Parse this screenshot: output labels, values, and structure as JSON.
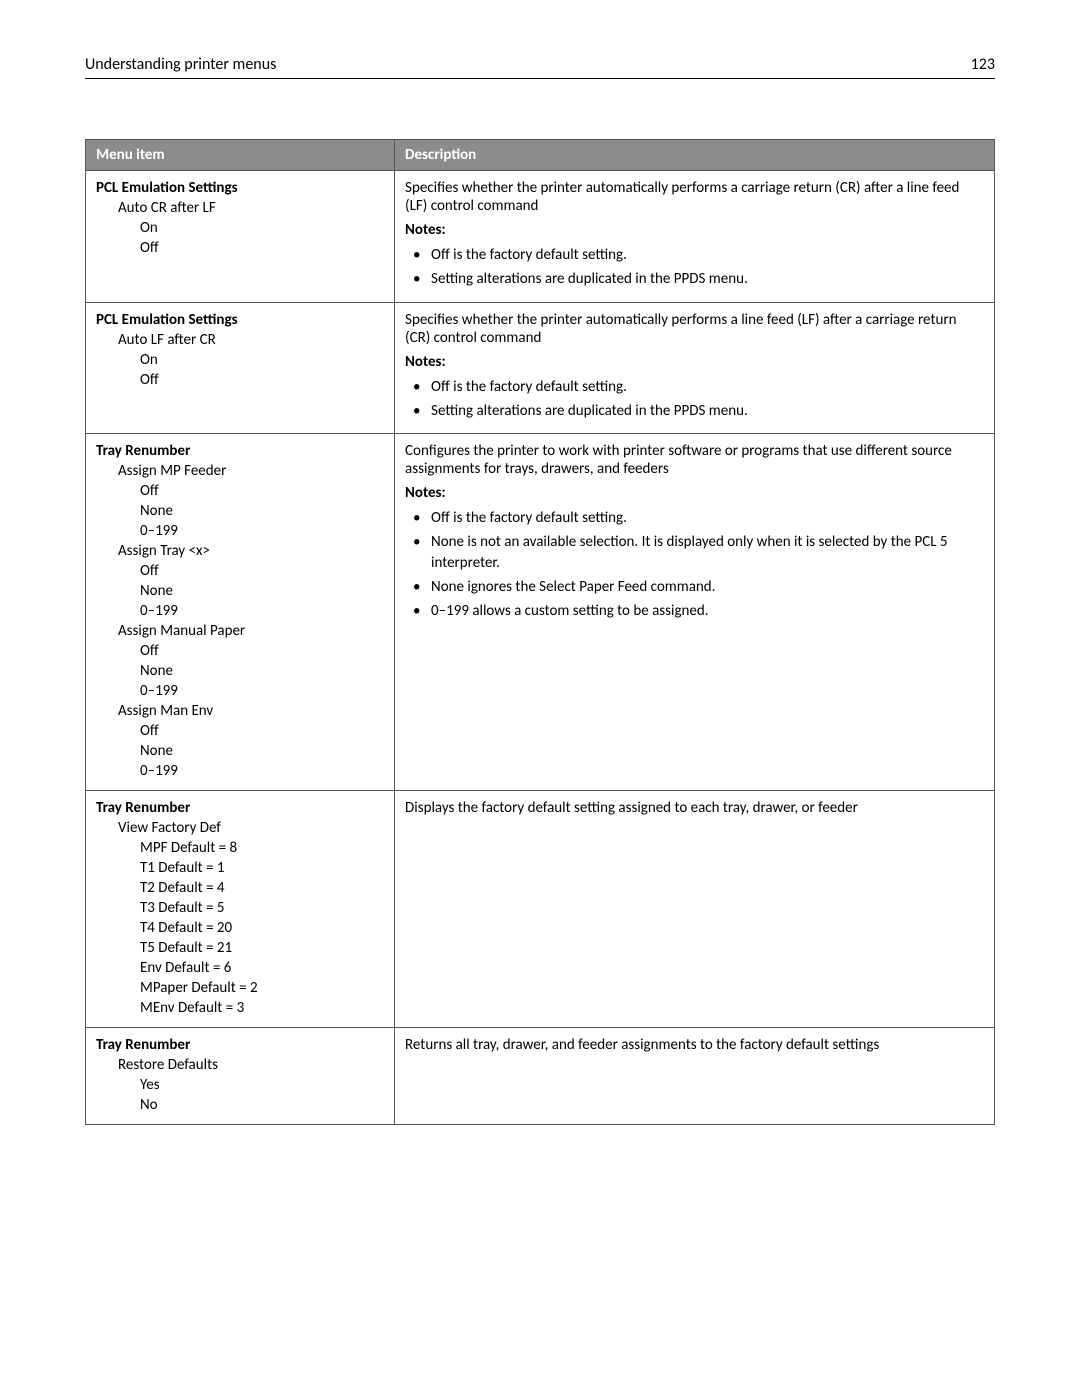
{
  "header": {
    "title": "Understanding printer menus",
    "page_number": "123"
  },
  "table": {
    "columns": [
      "Menu item",
      "Description"
    ],
    "rows": [
      {
        "menu": [
          {
            "indent": 0,
            "text": "PCL Emulation Settings"
          },
          {
            "indent": 1,
            "text": "Auto CR after LF"
          },
          {
            "indent": 2,
            "text": "On"
          },
          {
            "indent": 2,
            "text": "Off"
          }
        ],
        "description": "Specifies whether the printer automatically performs a carriage return (CR) after a line feed (LF) control command",
        "notes_label": "Notes:",
        "notes": [
          "Off is the factory default setting.",
          "Setting alterations are duplicated in the PPDS menu."
        ]
      },
      {
        "menu": [
          {
            "indent": 0,
            "text": "PCL Emulation Settings"
          },
          {
            "indent": 1,
            "text": "Auto LF after CR"
          },
          {
            "indent": 2,
            "text": "On"
          },
          {
            "indent": 2,
            "text": "Off"
          }
        ],
        "description": "Specifies whether the printer automatically performs a line feed (LF) after a carriage return (CR) control command",
        "notes_label": "Notes:",
        "notes": [
          "Off is the factory default setting.",
          "Setting alterations are duplicated in the PPDS menu."
        ]
      },
      {
        "menu": [
          {
            "indent": 0,
            "text": "Tray Renumber"
          },
          {
            "indent": 1,
            "text": "Assign MP Feeder"
          },
          {
            "indent": 2,
            "text": "Off"
          },
          {
            "indent": 2,
            "text": "None"
          },
          {
            "indent": 2,
            "text": "0–199"
          },
          {
            "indent": 1,
            "text": "Assign Tray <x>"
          },
          {
            "indent": 2,
            "text": "Off"
          },
          {
            "indent": 2,
            "text": "None"
          },
          {
            "indent": 2,
            "text": "0–199"
          },
          {
            "indent": 1,
            "text": "Assign Manual Paper"
          },
          {
            "indent": 2,
            "text": "Off"
          },
          {
            "indent": 2,
            "text": "None"
          },
          {
            "indent": 2,
            "text": "0–199"
          },
          {
            "indent": 1,
            "text": "Assign Man Env"
          },
          {
            "indent": 2,
            "text": "Off"
          },
          {
            "indent": 2,
            "text": "None"
          },
          {
            "indent": 2,
            "text": "0–199"
          }
        ],
        "description": "Configures the printer to work with printer software or programs that use different source assignments for trays, drawers, and feeders",
        "notes_label": "Notes:",
        "notes": [
          "Off is the factory default setting.",
          "None is not an available selection. It is displayed only when it is selected by the PCL 5 interpreter.",
          "None ignores the Select Paper Feed command.",
          "0–199 allows a custom setting to be assigned."
        ]
      },
      {
        "menu": [
          {
            "indent": 0,
            "text": "Tray Renumber"
          },
          {
            "indent": 1,
            "text": "View Factory Def"
          },
          {
            "indent": 2,
            "text": "MPF Default = 8"
          },
          {
            "indent": 2,
            "text": "T1 Default = 1"
          },
          {
            "indent": 2,
            "text": "T2 Default = 4"
          },
          {
            "indent": 2,
            "text": "T3 Default = 5"
          },
          {
            "indent": 2,
            "text": "T4 Default = 20"
          },
          {
            "indent": 2,
            "text": "T5 Default = 21"
          },
          {
            "indent": 2,
            "text": "Env Default = 6"
          },
          {
            "indent": 2,
            "text": "MPaper Default = 2"
          },
          {
            "indent": 2,
            "text": "MEnv Default = 3"
          }
        ],
        "description": "Displays the factory default setting assigned to each tray, drawer, or feeder",
        "notes_label": "",
        "notes": []
      },
      {
        "menu": [
          {
            "indent": 0,
            "text": "Tray Renumber"
          },
          {
            "indent": 1,
            "text": "Restore Defaults"
          },
          {
            "indent": 2,
            "text": "Yes"
          },
          {
            "indent": 2,
            "text": "No"
          }
        ],
        "description": "Returns all tray, drawer, and feeder assignments to the factory default settings",
        "notes_label": "",
        "notes": []
      }
    ]
  }
}
